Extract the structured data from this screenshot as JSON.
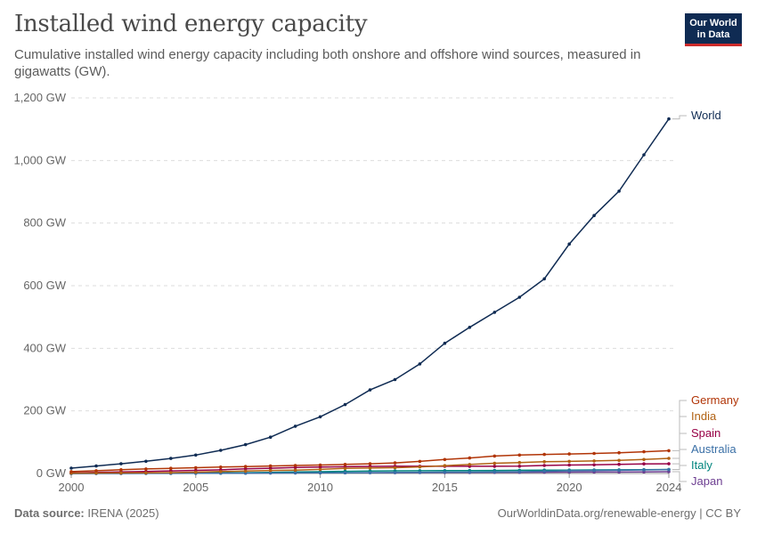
{
  "header": {
    "title": "Installed wind energy capacity",
    "subtitle": "Cumulative installed wind energy capacity including both onshore and offshore wind sources, measured in gigawatts (GW).",
    "logo_line1": "Our World",
    "logo_line2": "in Data"
  },
  "footer": {
    "source_label": "Data source:",
    "source_value": "IRENA (2025)",
    "url_license": "OurWorldinData.org/renewable-energy | CC BY"
  },
  "chart_data": {
    "type": "line",
    "title": "Installed wind energy capacity",
    "xlim": [
      2000,
      2024
    ],
    "ylim": [
      0,
      1200
    ],
    "y_ticks": [
      0,
      200,
      400,
      600,
      800,
      1000,
      1200
    ],
    "y_tick_labels": [
      "0 GW",
      "200 GW",
      "400 GW",
      "600 GW",
      "800 GW",
      "1,000 GW",
      "1,200 GW"
    ],
    "x_ticks": [
      2000,
      2005,
      2010,
      2015,
      2020,
      2024
    ],
    "x_tick_labels": [
      "2000",
      "2005",
      "2010",
      "2015",
      "2020",
      "2024"
    ],
    "grid": "horizontal dashed",
    "legend": "right, inline labels",
    "x": [
      2000,
      2001,
      2002,
      2003,
      2004,
      2005,
      2006,
      2007,
      2008,
      2009,
      2010,
      2011,
      2012,
      2013,
      2014,
      2015,
      2016,
      2017,
      2018,
      2019,
      2020,
      2021,
      2022,
      2023,
      2024
    ],
    "series": [
      {
        "name": "World",
        "color": "#0f2b53",
        "values": [
          17,
          24,
          31,
          39,
          48,
          59,
          74,
          92,
          116,
          151,
          181,
          220,
          267,
          300,
          350,
          416,
          467,
          515,
          563,
          622,
          733,
          824,
          902,
          1018,
          1133
        ]
      },
      {
        "name": "Germany",
        "color": "#b13507",
        "values": [
          6,
          8.7,
          12,
          14.6,
          16.6,
          18.4,
          20.6,
          22.2,
          23.8,
          25.6,
          27,
          29,
          31,
          33.7,
          38.6,
          44.6,
          49.4,
          55.6,
          58.8,
          60.8,
          62.2,
          63.9,
          66.3,
          69.5,
          72.7
        ]
      },
      {
        "name": "India",
        "color": "#b16214",
        "values": [
          1.2,
          1.4,
          1.6,
          2.1,
          2.9,
          4.4,
          6.3,
          7.8,
          9.6,
          10.9,
          13.2,
          16.1,
          17.3,
          18.4,
          21,
          25.1,
          28.7,
          32.8,
          35.1,
          37.5,
          38.6,
          40.1,
          41.9,
          44.7,
          48.2
        ]
      },
      {
        "name": "Spain",
        "color": "#970046",
        "values": [
          2.2,
          3.4,
          5,
          6.2,
          8.3,
          9.9,
          11.7,
          14.8,
          16.7,
          19.2,
          20.7,
          21.5,
          22.8,
          22.9,
          22.9,
          22.9,
          22.9,
          23,
          23.4,
          25.6,
          27.1,
          27.5,
          29.3,
          30.6,
          31.1
        ]
      },
      {
        "name": "Australia",
        "color": "#3a6fa6",
        "values": [
          0,
          0.1,
          0.1,
          0.2,
          0.4,
          0.7,
          0.8,
          0.8,
          1.3,
          1.7,
          1.9,
          2.2,
          2.6,
          3.1,
          3.8,
          4.2,
          4.3,
          4.8,
          5.6,
          7.1,
          8.9,
          9.7,
          10.3,
          11.5,
          12.4
        ]
      },
      {
        "name": "Italy",
        "color": "#00847e",
        "values": [
          0.4,
          0.7,
          0.8,
          0.9,
          1.1,
          1.6,
          1.9,
          2.7,
          3.5,
          4.9,
          5.8,
          6.9,
          8.1,
          8.5,
          8.7,
          9.1,
          9.4,
          9.7,
          10.3,
          10.7,
          10.9,
          11.3,
          11.8,
          12.3,
          12.9
        ]
      },
      {
        "name": "Japan",
        "color": "#6d3e91",
        "values": [
          0.1,
          0.3,
          0.4,
          0.6,
          0.9,
          1.1,
          1.3,
          1.5,
          1.8,
          2,
          2.3,
          2.4,
          2.6,
          2.7,
          2.8,
          3,
          3.2,
          3.4,
          3.7,
          3.9,
          4.2,
          4.5,
          4.6,
          5.2,
          5.8
        ]
      }
    ]
  }
}
